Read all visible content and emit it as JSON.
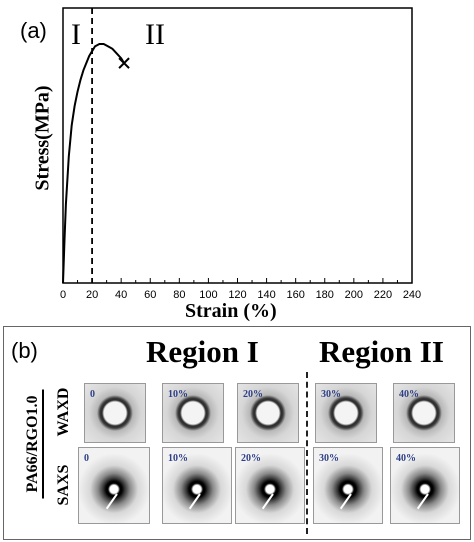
{
  "panel_a": {
    "label": "(a)",
    "region_labels": [
      "I",
      "II"
    ],
    "xlabel": "Strain (%)",
    "ylabel": "Stress(MPa)"
  },
  "chart_data": {
    "type": "line",
    "title": "",
    "xlabel": "Strain (%)",
    "ylabel": "Stress(MPa)",
    "xlim": [
      0,
      240
    ],
    "x_ticks": [
      0,
      20,
      40,
      60,
      80,
      100,
      120,
      140,
      160,
      180,
      200,
      220,
      240
    ],
    "y_ticks": [],
    "grid": false,
    "series": [
      {
        "x": [
          0,
          1,
          2,
          4,
          6,
          8,
          10,
          12,
          14,
          16,
          18,
          20,
          22,
          25,
          28,
          31,
          34,
          37,
          40,
          42
        ],
        "y": [
          0.0,
          0.18,
          0.33,
          0.53,
          0.66,
          0.74,
          0.8,
          0.85,
          0.89,
          0.92,
          0.95,
          0.97,
          0.99,
          1.0,
          1.0,
          0.99,
          0.98,
          0.96,
          0.94,
          0.92
        ]
      }
    ],
    "markers": [
      {
        "type": "cross",
        "x": 42,
        "y": 0.92,
        "meaning": "fracture point"
      }
    ],
    "vlines": [
      {
        "x": 20,
        "style": "dashed"
      }
    ],
    "annotations": [
      "I",
      "II"
    ]
  },
  "panel_b": {
    "label": "(b)",
    "region_titles": [
      "Region I",
      "Region II"
    ],
    "sample_label": "PA66/RGO1.0",
    "row_labels": [
      "WAXD",
      "SAXS"
    ],
    "waxd_strains": [
      "0",
      "10%",
      "20%",
      "30%",
      "40%"
    ],
    "saxs_strains": [
      "0",
      "10%",
      "20%",
      "30%",
      "40%"
    ]
  }
}
